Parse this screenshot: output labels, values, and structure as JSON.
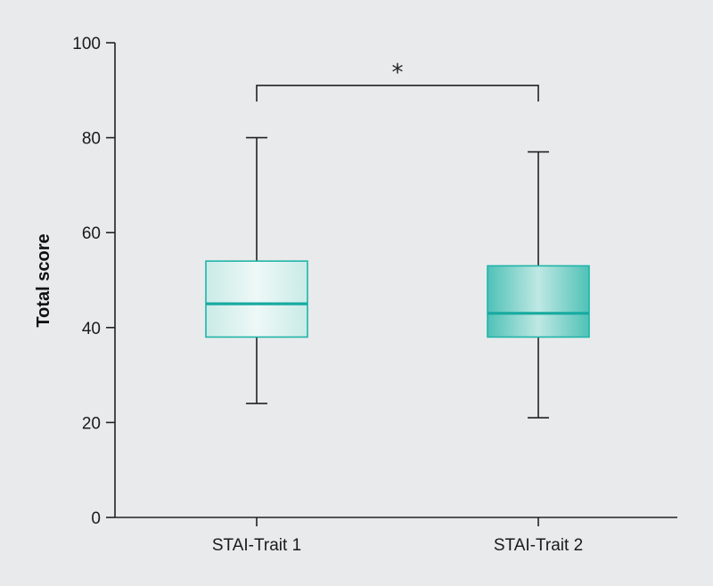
{
  "chart_data": {
    "type": "box",
    "ylabel": "Total score",
    "ylim": [
      0,
      100
    ],
    "yticks": [
      0,
      20,
      40,
      60,
      80,
      100
    ],
    "grid": false,
    "categories": [
      "STAI-Trait 1",
      "STAI-Trait 2"
    ],
    "boxes": [
      {
        "category": "STAI-Trait 1",
        "min": 24,
        "q1": 38,
        "median": 45,
        "q3": 54,
        "max": 80,
        "fill": "#dff2f0"
      },
      {
        "category": "STAI-Trait 2",
        "min": 21,
        "q1": 38,
        "median": 43,
        "q3": 53,
        "max": 77,
        "fill": "#7fd2c9"
      }
    ],
    "annotations": [
      {
        "type": "significance-bracket",
        "between": [
          "STAI-Trait 1",
          "STAI-Trait 2"
        ],
        "label": "*",
        "y": 91
      }
    ],
    "colors": {
      "box_stroke": "#1fb5a8",
      "median": "#17aaa0",
      "axis": "#222222",
      "background": "#e9eaec"
    }
  }
}
